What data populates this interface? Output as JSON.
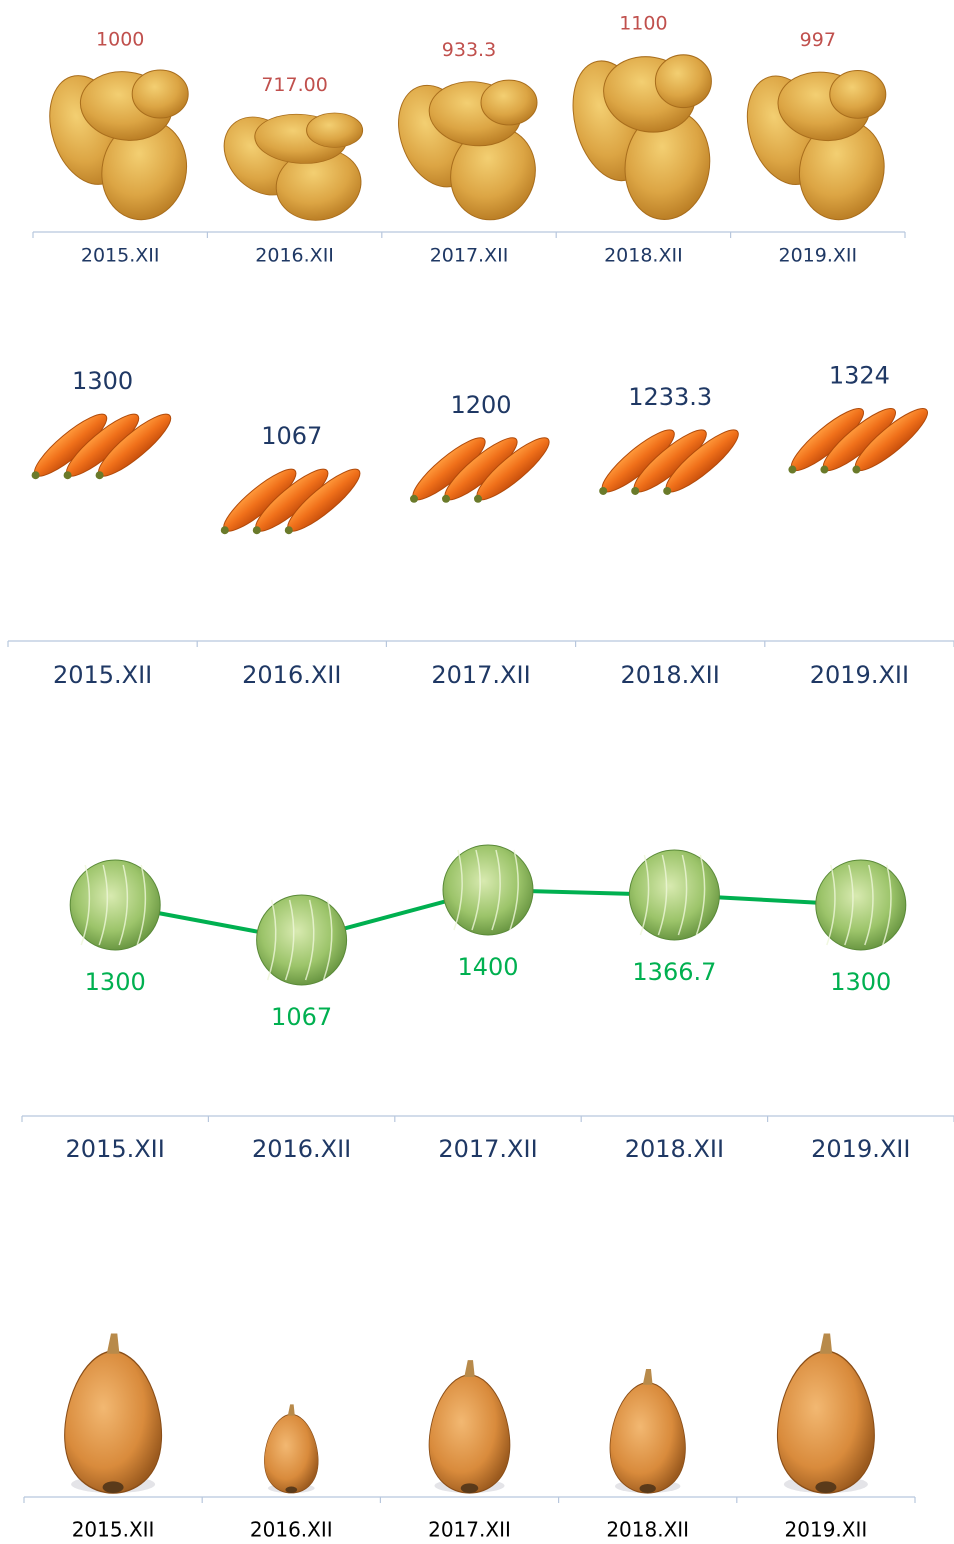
{
  "chart_data": [
    {
      "type": "pictograph",
      "icon": "potato",
      "label_color": "#c0504d",
      "category_color": "#1f3864",
      "categories": [
        "2015.XII",
        "2016.XII",
        "2017.XII",
        "2018.XII",
        "2019.XII"
      ],
      "values": [
        1000,
        717,
        933.3,
        1100,
        997
      ],
      "value_labels": [
        "1000",
        "717.00",
        "933.3",
        "1100",
        "997"
      ]
    },
    {
      "type": "pictograph",
      "icon": "carrot",
      "label_color": "#1f3864",
      "category_color": "#1f3864",
      "categories": [
        "2015.XII",
        "2016.XII",
        "2017.XII",
        "2018.XII",
        "2019.XII"
      ],
      "values": [
        1300,
        1067,
        1200,
        1233.3,
        1324
      ]
    },
    {
      "type": "line",
      "icon": "cabbage",
      "color": "#00b050",
      "label_color": "#00b050",
      "category_color": "#1f3864",
      "categories": [
        "2015.XII",
        "2016.XII",
        "2017.XII",
        "2018.XII",
        "2019.XII"
      ],
      "values": [
        1300,
        1067,
        1400,
        1366.7,
        1300
      ]
    },
    {
      "type": "pictograph",
      "icon": "onion",
      "category_color": "#000000",
      "categories": [
        "2015.XII",
        "2016.XII",
        "2017.XII",
        "2018.XII",
        "2019.XII"
      ],
      "values": [
        180,
        100,
        150,
        140,
        180
      ]
    }
  ]
}
